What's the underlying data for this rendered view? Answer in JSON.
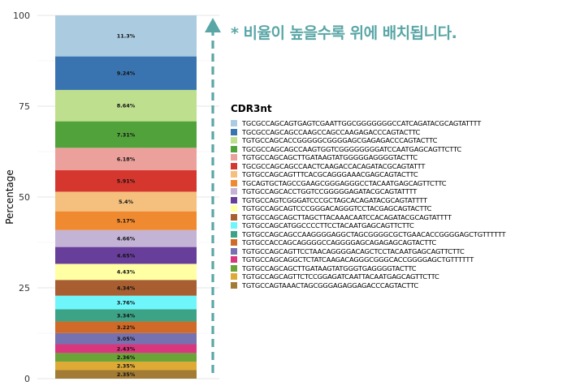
{
  "annotation": "* 비율이 높을수록 위에 배치됩니다.",
  "chart_data": {
    "type": "bar",
    "stacked": true,
    "ylabel": "Percentage",
    "xlabel": "",
    "ylim": [
      0,
      100
    ],
    "y_ticks": [
      0,
      25,
      50,
      75,
      100
    ],
    "grid": true,
    "legend_title": "CDR3nt",
    "legend_position": "right",
    "segments": [
      {
        "name": "TGCGCCAGCAGTGAGTCGAATTGGCGGGGGGGCCATCAGATACGCAGTATTTT",
        "value": 11.3,
        "label": "11.3%",
        "color": "#abcbe1"
      },
      {
        "name": "TGCGCCAGCAGCCAAGCCAGCCAAGAGACCCAGTACTTC",
        "value": 9.24,
        "label": "9.24%",
        "color": "#3a74b0"
      },
      {
        "name": "TGTGCCAGCACCGGGGGCGGGGAGCGAGAGACCCAGTACTTC",
        "value": 8.64,
        "label": "8.64%",
        "color": "#bee08e"
      },
      {
        "name": "TGCGCCAGCAGCCAAGTGGTCGGGGGGGGATCCAATGAGCAGTTCTTC",
        "value": 7.31,
        "label": "7.31%",
        "color": "#52a23c"
      },
      {
        "name": "TGTGCCAGCAGCTTGATAAGTATGGGGGAGGGGTACTTC",
        "value": 6.18,
        "label": "6.18%",
        "color": "#eca09b"
      },
      {
        "name": "TGCGCCAGCAGCCAACTCAAGACCACAGATACGCAGTATTT",
        "value": 5.91,
        "label": "5.91%",
        "color": "#d5372e"
      },
      {
        "name": "TGTGCCAGCAGTTTCACGCAGGGAAACGAGCAGTACTTC",
        "value": 5.4,
        "label": "5.4%",
        "color": "#f5c07e"
      },
      {
        "name": "TGCAGTGCTAGCCGAAGCGGGAGGGCCTACAATGAGCAGTTCTTC",
        "value": 5.17,
        "label": "5.17%",
        "color": "#ef8a30"
      },
      {
        "name": "TGTGCCAGCACCTGGTCCGGGGGAGATACGCAGTATTTT",
        "value": 4.66,
        "label": "4.66%",
        "color": "#c3b4d6"
      },
      {
        "name": "TGTGCCAGTCGGGATCCCGCTAGCACAGATACGCAGTATTTT",
        "value": 4.65,
        "label": "4.65%",
        "color": "#673e99"
      },
      {
        "name": "TGTGCCAGCAGTCCCGGGACAGGGTCCTACGAGCAGTACTTC",
        "value": 4.43,
        "label": "4.43%",
        "color": "#ffffa4"
      },
      {
        "name": "TGTGCCAGCAGCTTAGCTTACAAACAATCCACAGATACGCAGTATTTT",
        "value": 4.34,
        "label": "4.34%",
        "color": "#a85e31"
      },
      {
        "name": "TGTGCCAGCATGGCCCCTTCCTACAATGAGCAGTTCTTC",
        "value": 3.76,
        "label": "3.76%",
        "color": "#6ff6fb"
      },
      {
        "name": "TGTGCCAGCAGCCAAGGGGAGGCTAGCGGGGCGCTGAACACCGGGGAGCTGTTTTTT",
        "value": 3.34,
        "label": "3.34%",
        "color": "#3da386"
      },
      {
        "name": "TGTGCCACCAGCAGGGGCCAGGGGAGCAGAGAGCAGTACTTC",
        "value": 3.22,
        "label": "3.22%",
        "color": "#cf6a28"
      },
      {
        "name": "TGTGCCAGCAGTTCCTAACAGGGGACAGCTCCTACAATGAGCAGTTCTTC",
        "value": 3.05,
        "label": "3.05%",
        "color": "#7671b0"
      },
      {
        "name": "TGTGCCAGCAGGCTCTATCAAGACAGGGCGGGCACCGGGGAGCTGTTTTTT",
        "value": 2.43,
        "label": "2.43%",
        "color": "#d8367d"
      },
      {
        "name": "TGTGCCAGCAGCTTGATAAGTATGGGTGAGGGGTACTTC",
        "value": 2.36,
        "label": "2.36%",
        "color": "#6aa337"
      },
      {
        "name": "TGTGCCAGCAGTTCTCCGGAGATCAATTACAATGAGCAGTTCTTC",
        "value": 2.35,
        "label": "2.35%",
        "color": "#deaa36"
      },
      {
        "name": "TGTGCCAGTAAACTAGCGGGAGAGGAGACCCAGTACTTC",
        "value": 2.35,
        "label": "2.35%",
        "color": "#a27b35"
      }
    ]
  }
}
